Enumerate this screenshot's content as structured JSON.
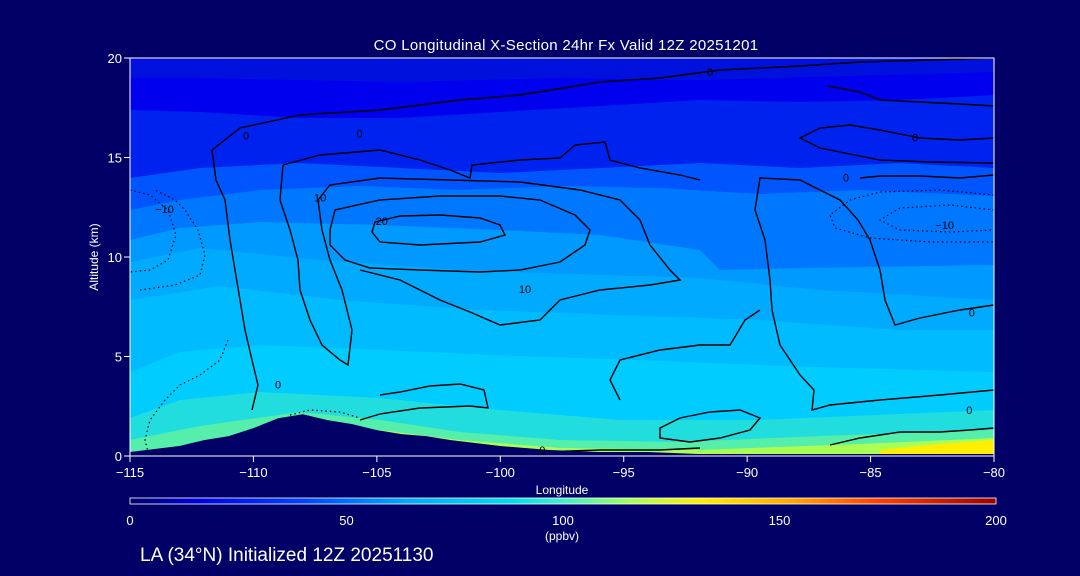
{
  "chart_data": {
    "type": "heatmap",
    "title": "CO Longitudinal X-Section 24hr  Fx Valid 12Z 20251201",
    "xlabel": "Longitude",
    "ylabel": "Altitude (km)",
    "xlim": [
      -115,
      -80
    ],
    "ylim": [
      0,
      20
    ],
    "x_ticks": [
      -115,
      -110,
      -105,
      -100,
      -95,
      -90,
      -85,
      -80
    ],
    "x_tick_labels": [
      "−115",
      "−110",
      "−105",
      "−100",
      "−95",
      "−90",
      "−85",
      "−80"
    ],
    "y_ticks": [
      0,
      5,
      10,
      15,
      20
    ],
    "y_tick_labels": [
      "0",
      "5",
      "10",
      "15",
      "20"
    ],
    "colorbar": {
      "label": "(ppbv)",
      "range": [
        0,
        200
      ],
      "ticks": [
        0,
        50,
        100,
        150,
        200
      ],
      "tick_labels": [
        "0",
        "50",
        "100",
        "150",
        "200"
      ]
    },
    "contour_labels": [
      {
        "text": "0",
        "lon": -110.3,
        "alt": 16.1
      },
      {
        "text": "0",
        "lon": -105.7,
        "alt": 16.2
      },
      {
        "text": "0",
        "lon": -91.5,
        "alt": 19.3
      },
      {
        "text": "0",
        "lon": -83.2,
        "alt": 16.0
      },
      {
        "text": "0",
        "lon": -86.0,
        "alt": 14.0
      },
      {
        "text": "0",
        "lon": -80.9,
        "alt": 7.2
      },
      {
        "text": "0",
        "lon": -81.0,
        "alt": 2.3
      },
      {
        "text": "0",
        "lon": -109.0,
        "alt": 3.6
      },
      {
        "text": "0",
        "lon": -98.3,
        "alt": 0.3
      },
      {
        "text": "10",
        "lon": -107.3,
        "alt": 13.0
      },
      {
        "text": "10",
        "lon": -99.0,
        "alt": 8.4
      },
      {
        "text": "20",
        "lon": -104.8,
        "alt": 11.8
      },
      {
        "text": "−10",
        "lon": -113.6,
        "alt": 12.4
      },
      {
        "text": "−10",
        "lon": -82.0,
        "alt": 11.6
      }
    ],
    "terrain": {
      "lon": [
        -115,
        -113,
        -112,
        -111,
        -110,
        -109,
        -108,
        -107,
        -106,
        -105,
        -104,
        -103,
        -102,
        -100,
        -98,
        -96,
        -94,
        -92,
        -90,
        -87,
        -85,
        -82,
        -80
      ],
      "alt": [
        0.2,
        0.5,
        0.8,
        1.0,
        1.4,
        1.9,
        2.1,
        1.8,
        1.6,
        1.3,
        1.1,
        1.0,
        0.8,
        0.5,
        0.3,
        0.2,
        0.2,
        0.1,
        0.1,
        0.1,
        0.1,
        0.1,
        0.1
      ]
    }
  },
  "footer": {
    "text": "LA (34°N) Initialized 12Z 20251130"
  }
}
